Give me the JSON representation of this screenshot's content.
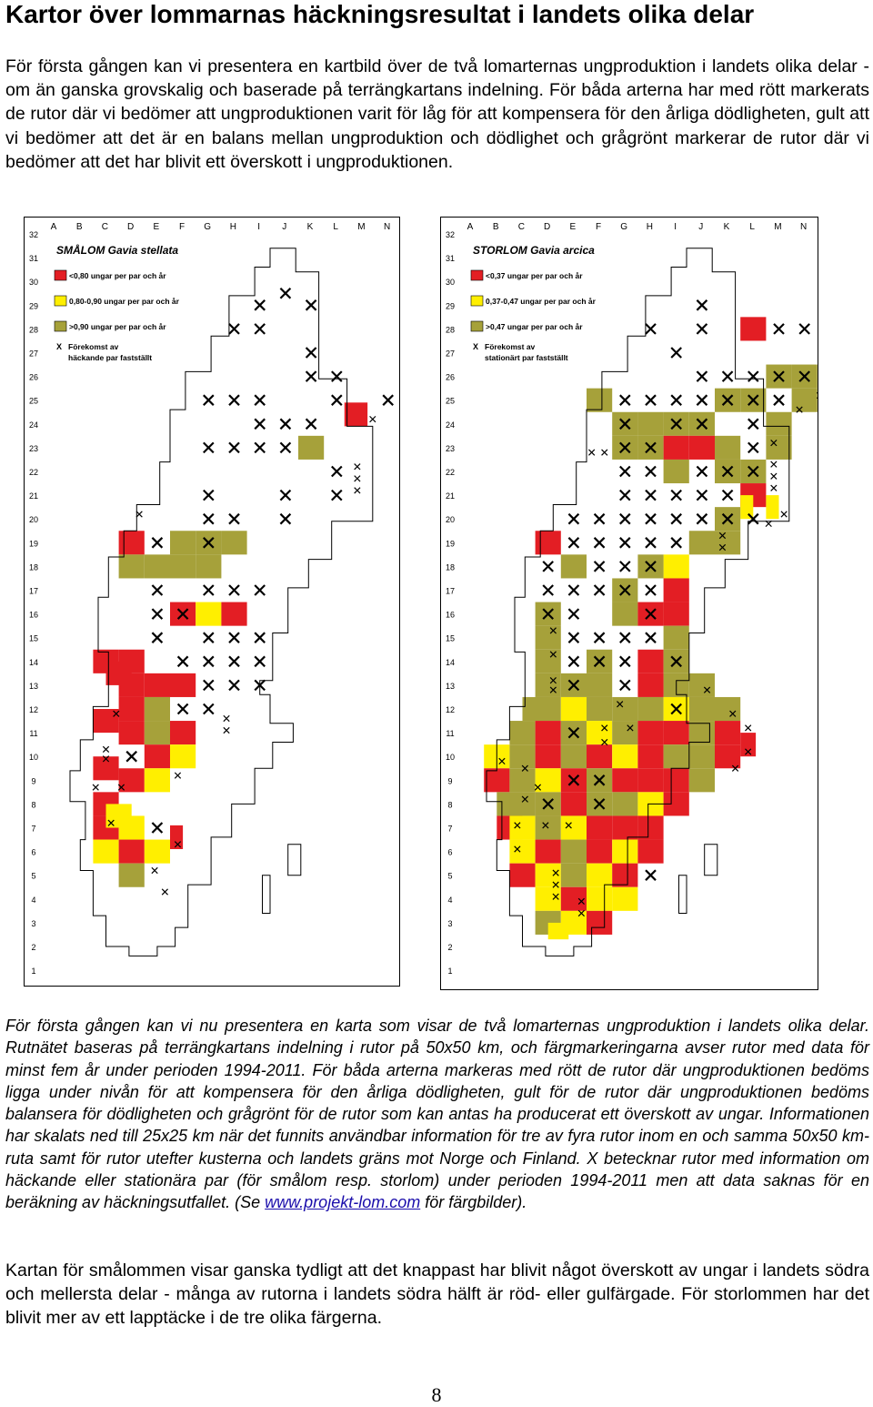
{
  "title": "Kartor över lommarnas häckningsresultat i landets olika delar",
  "intro": "För första gången kan vi presentera en kartbild över de två lomarternas ungproduktion i landets olika delar - om än ganska grovskalig och baserade på terrängkartans indelning. För båda arterna har med rött markerats de rutor där vi bedömer att ungproduktionen varit för låg för att kompensera för den årliga dödligheten, gult att vi bedömer att det är en balans mellan ungproduktion och dödlighet och grågrönt markerar de rutor där vi bedömer att det har blivit ett överskott i ungproduktionen.",
  "colors": {
    "red": "#e31e24",
    "yellow": "#ffef00",
    "olive": "#a6a13a"
  },
  "maps": [
    {
      "title": "SMÅLOM Gavia stellata",
      "legend": [
        {
          "color": "red",
          "label": "<0,80 ungar per par och år"
        },
        {
          "color": "yellow",
          "label": "0,80-0,90 ungar per par och år"
        },
        {
          "color": "olive",
          "label": ">0,90 ungar per par och år"
        }
      ],
      "x_legend": [
        "Förekomst av",
        "häckande par fastställt"
      ],
      "columns": [
        "A",
        "B",
        "C",
        "D",
        "E",
        "F",
        "G",
        "H",
        "I",
        "J",
        "K",
        "L",
        "M",
        "N"
      ],
      "rows": [
        "32",
        "31",
        "30",
        "29",
        "28",
        "27",
        "26",
        "25",
        "24",
        "23",
        "22",
        "21",
        "20",
        "19",
        "18",
        "17",
        "16",
        "15",
        "14",
        "13",
        "12",
        "11",
        "10",
        "9",
        "8",
        "7",
        "6",
        "5",
        "4",
        "3",
        "2",
        "1"
      ]
    },
    {
      "title": "STORLOM Gavia arcica",
      "legend": [
        {
          "color": "red",
          "label": "<0,37 ungar per par och år"
        },
        {
          "color": "yellow",
          "label": "0,37-0,47 ungar per par och år"
        },
        {
          "color": "olive",
          "label": ">0,47 ungar per par och år"
        }
      ],
      "x_legend": [
        "Förekomst av",
        "stationärt par fastställt"
      ],
      "columns": [
        "A",
        "B",
        "C",
        "D",
        "E",
        "F",
        "G",
        "H",
        "I",
        "J",
        "K",
        "L",
        "M",
        "N"
      ],
      "rows": [
        "32",
        "31",
        "30",
        "29",
        "28",
        "27",
        "26",
        "25",
        "24",
        "23",
        "22",
        "21",
        "20",
        "19",
        "18",
        "17",
        "16",
        "15",
        "14",
        "13",
        "12",
        "11",
        "10",
        "9",
        "8",
        "7",
        "6",
        "5",
        "4",
        "3",
        "2",
        "1"
      ]
    }
  ],
  "caption": {
    "before_link": "För första gången kan vi nu presentera en karta som visar de två lomarternas ungproduktion i landets olika delar. Rutnätet baseras på terrängkartans indelning i rutor på 50x50 km, och färgmarkeringarna avser rutor med data för minst fem år under perioden 1994-2011. För båda arterna markeras med rött de rutor där ungproduktionen bedöms ligga under nivån för att kompensera för den årliga dödligheten, gult för de rutor där ungproduktionen bedöms balansera för dödligheten och grågrönt för de rutor som kan antas ha producerat ett överskott av ungar. Informationen har skalats ned till 25x25 km när det funnits användbar information för tre av fyra rutor inom en och samma 50x50 km-ruta samt för rutor utefter kusterna och landets gräns mot Norge och Finland. X betecknar rutor med information om häckande eller stationära par (för smålom resp. storlom) under perioden 1994-2011 men att data saknas för en beräkning av häckningsutfallet. (Se ",
    "link": "www.projekt-lom.com",
    "after_link": " för färgbilder)."
  },
  "closing": "Kartan för smålommen visar ganska tydligt att det knappast har blivit något överskott av ungar i landets södra och mellersta delar - många av rutorna i landets södra hälft är röd- eller gulfärgade. För storlommen har det blivit mer av ett lapptäcke i de tre olika färgerna.",
  "page_number": "8"
}
